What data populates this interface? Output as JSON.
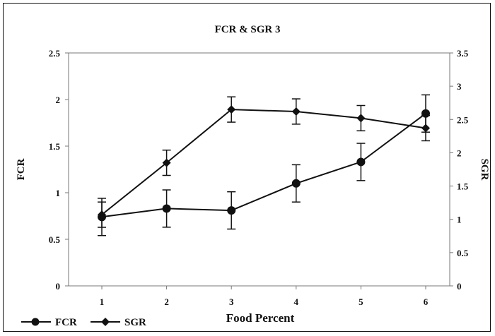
{
  "chart_data": {
    "type": "line",
    "title": "FCR & SGR 3",
    "xlabel": "Food Percent",
    "ylabel_left": "FCR",
    "ylabel_right": "SGR",
    "categories": [
      "1",
      "2",
      "3",
      "4",
      "5",
      "6"
    ],
    "x": [
      1,
      2,
      3,
      4,
      5,
      6
    ],
    "ylim_left": [
      0,
      2.5
    ],
    "yticks_left": [
      "0",
      "0.5",
      "1",
      "1.5",
      "2",
      "2.5"
    ],
    "ylim_right": [
      0,
      3.5
    ],
    "yticks_right": [
      "0",
      "0.5",
      "1",
      "1.5",
      "2",
      "2.5",
      "3",
      "3.5"
    ],
    "grid": false,
    "legend_position": "bottom-left",
    "series": [
      {
        "name": "FCR",
        "axis": "left",
        "marker": "circle",
        "values": [
          0.74,
          0.83,
          0.81,
          1.1,
          1.33,
          1.85
        ],
        "errors": [
          0.2,
          0.2,
          0.2,
          0.2,
          0.2,
          0.2
        ]
      },
      {
        "name": "SGR",
        "axis": "right",
        "marker": "diamond",
        "values": [
          1.07,
          1.85,
          2.65,
          2.62,
          2.52,
          2.37
        ],
        "errors": [
          0.19,
          0.19,
          0.19,
          0.19,
          0.19,
          0.19
        ]
      }
    ]
  }
}
